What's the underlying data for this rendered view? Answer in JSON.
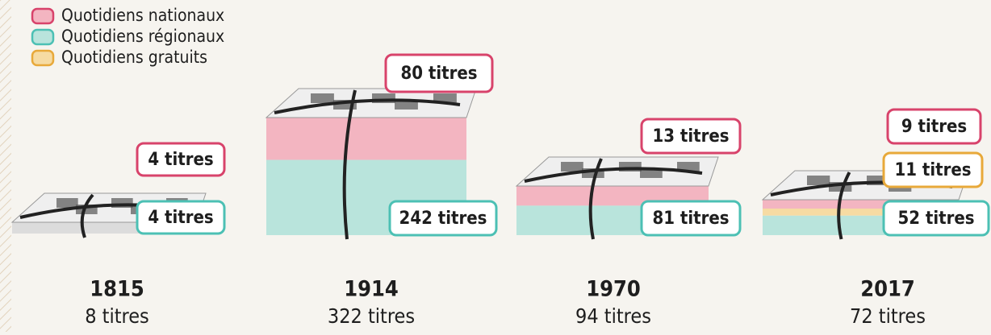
{
  "legend": [
    {
      "label": "Quotidiens nationaux",
      "color": "#d8436b"
    },
    {
      "label": "Quotidiens régionaux",
      "color": "#4cc0b4"
    },
    {
      "label": "Quotidiens gratuits",
      "color": "#e8a93a"
    }
  ],
  "groups": [
    {
      "year": "1815",
      "total": "8 titres",
      "segments": [
        {
          "label": "4 titres",
          "color": "#d8436b"
        },
        {
          "label": "4 titres",
          "color": "#4cc0b4"
        }
      ]
    },
    {
      "year": "1914",
      "total": "322 titres",
      "segments": [
        {
          "label": "80 titres",
          "color": "#d8436b"
        },
        {
          "label": "242 titres",
          "color": "#4cc0b4"
        }
      ]
    },
    {
      "year": "1970",
      "total": "94 titres",
      "segments": [
        {
          "label": "13 titres",
          "color": "#d8436b"
        },
        {
          "label": "81 titres",
          "color": "#4cc0b4"
        }
      ]
    },
    {
      "year": "2017",
      "total": "72 titres",
      "segments": [
        {
          "label": "9 titres",
          "color": "#d8436b"
        },
        {
          "label": "11 titres",
          "color": "#e8a93a"
        },
        {
          "label": "52 titres",
          "color": "#4cc0b4"
        }
      ]
    }
  ]
}
